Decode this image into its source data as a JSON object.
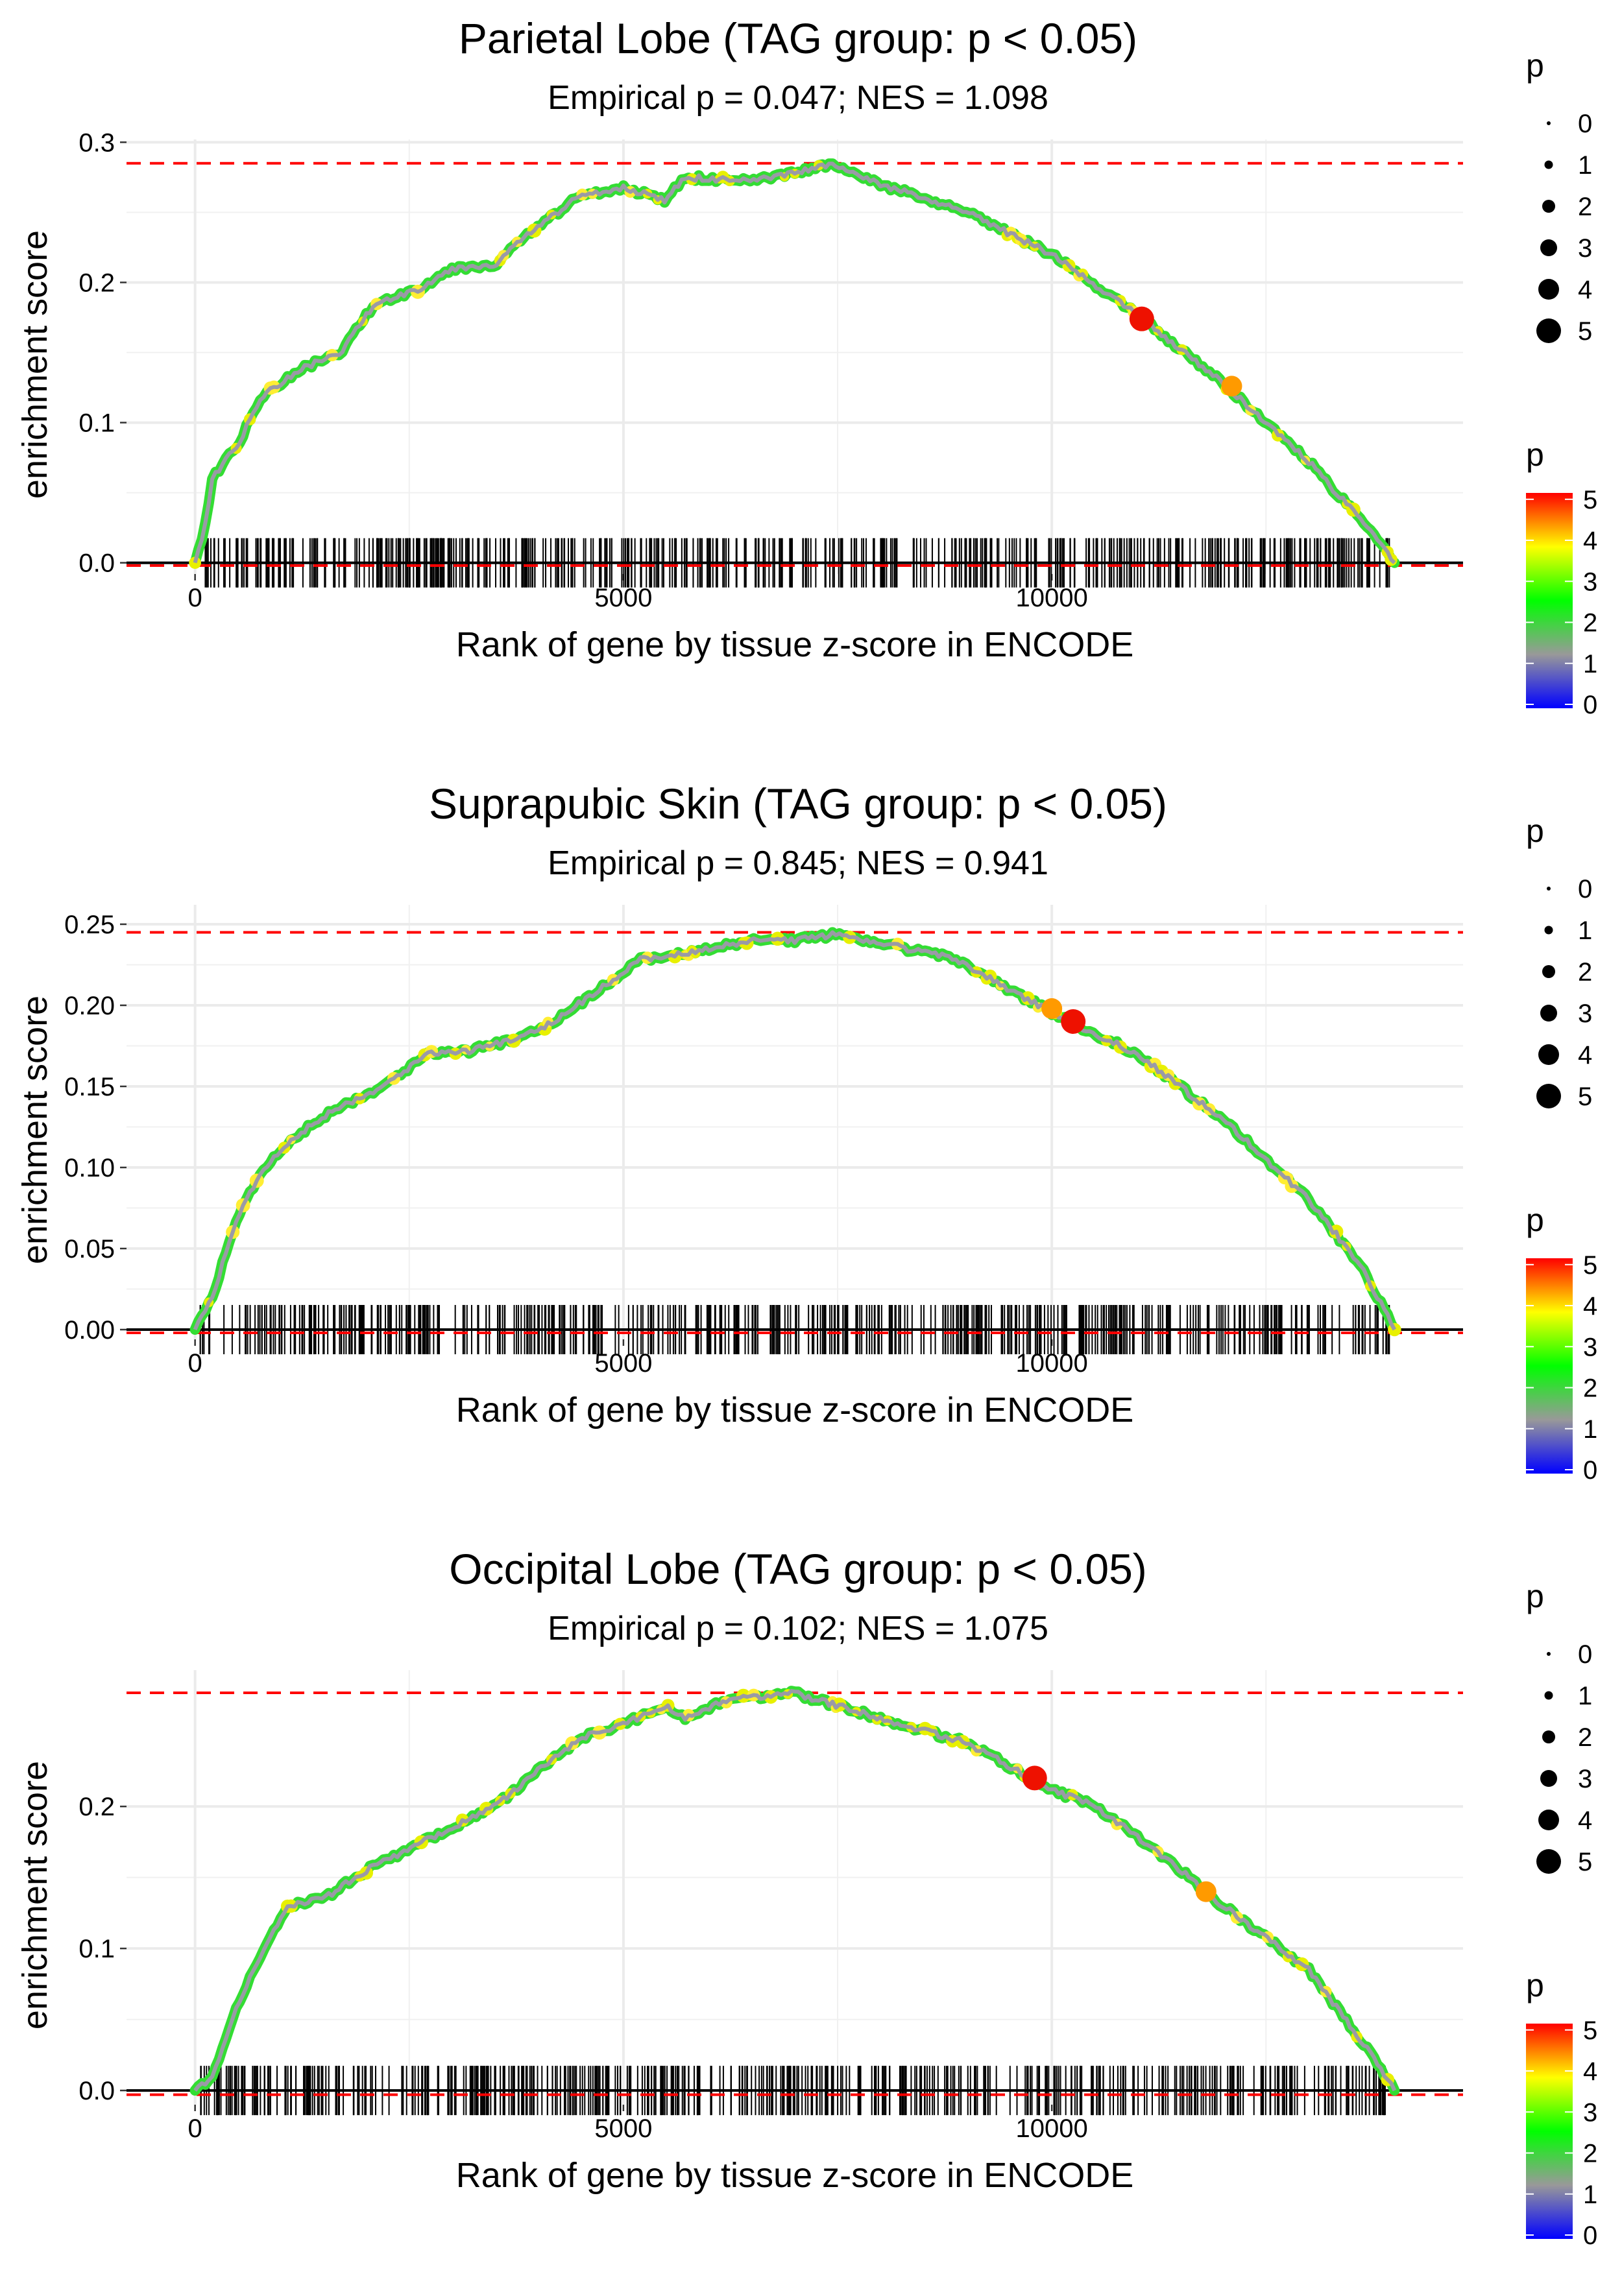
{
  "chart_data": [
    {
      "type": "line",
      "title": "Parietal Lobe (TAG group: p < 0.05)",
      "subtitle": "Empirical p = 0.047; NES = 1.098",
      "xlabel": "Rank of gene by tissue z-score in ENCODE",
      "ylabel": "enrichment score",
      "xlim": [
        -800,
        14800
      ],
      "ylim": [
        -0.008,
        0.302
      ],
      "x_ticks": [
        0,
        5000,
        10000
      ],
      "x_tick_labels": [
        "0",
        "5000",
        "10000"
      ],
      "y_ticks": [
        0.0,
        0.1,
        0.2,
        0.3
      ],
      "y_tick_labels": [
        "0.0",
        "0.1",
        "0.2",
        "0.3"
      ],
      "max_es": 0.285,
      "min_es": -0.002,
      "x_end": 14000,
      "rug_range": [
        0,
        14000
      ],
      "curve": [
        [
          0,
          0
        ],
        [
          100,
          0.02
        ],
        [
          200,
          0.06
        ],
        [
          500,
          0.085
        ],
        [
          800,
          0.12
        ],
        [
          1300,
          0.14
        ],
        [
          1700,
          0.15
        ],
        [
          2100,
          0.185
        ],
        [
          2600,
          0.195
        ],
        [
          3000,
          0.21
        ],
        [
          3500,
          0.213
        ],
        [
          3900,
          0.235
        ],
        [
          4500,
          0.262
        ],
        [
          5000,
          0.268
        ],
        [
          5500,
          0.258
        ],
        [
          5700,
          0.275
        ],
        [
          6500,
          0.272
        ],
        [
          7000,
          0.278
        ],
        [
          7400,
          0.284
        ],
        [
          8000,
          0.27
        ],
        [
          9000,
          0.25
        ],
        [
          10000,
          0.22
        ],
        [
          11000,
          0.177
        ],
        [
          12000,
          0.128
        ],
        [
          13000,
          0.072
        ],
        [
          13900,
          0.01
        ],
        [
          14000,
          0
        ]
      ],
      "highlight_points": [
        {
          "x": 11050,
          "y": 0.174,
          "p": 5.2
        },
        {
          "x": 12100,
          "y": 0.126,
          "p": 4.0
        }
      ],
      "size_legend": {
        "title": "p",
        "labels": [
          "0",
          "1",
          "2",
          "3",
          "4",
          "5"
        ]
      },
      "color_legend": {
        "title": "p",
        "labels": [
          "5",
          "4",
          "3",
          "2",
          "1",
          "0"
        ],
        "colors": [
          "#ff0000",
          "#ffff00",
          "#00ff00",
          "#999999",
          "#0000ff"
        ]
      }
    },
    {
      "type": "line",
      "title": "Suprapubic Skin (TAG group: p < 0.05)",
      "subtitle": "Empirical p = 0.845; NES = 0.941",
      "xlabel": "Rank of gene by tissue z-score in ENCODE",
      "ylabel": "enrichment score",
      "xlim": [
        -800,
        14800
      ],
      "ylim": [
        -0.006,
        0.262
      ],
      "x_ticks": [
        0,
        5000,
        10000
      ],
      "x_tick_labels": [
        "0",
        "5000",
        "10000"
      ],
      "y_ticks": [
        0.0,
        0.05,
        0.1,
        0.15,
        0.2,
        0.25
      ],
      "y_tick_labels": [
        "0.00",
        "0.05",
        "0.10",
        "0.15",
        "0.20",
        "0.25"
      ],
      "max_es": 0.245,
      "min_es": -0.002,
      "x_end": 14000,
      "rug_range": [
        0,
        14000
      ],
      "curve": [
        [
          0,
          0
        ],
        [
          200,
          0.02
        ],
        [
          500,
          0.07
        ],
        [
          800,
          0.1
        ],
        [
          1200,
          0.12
        ],
        [
          1600,
          0.135
        ],
        [
          2200,
          0.15
        ],
        [
          2700,
          0.17
        ],
        [
          3200,
          0.172
        ],
        [
          3800,
          0.18
        ],
        [
          4200,
          0.19
        ],
        [
          4800,
          0.213
        ],
        [
          5200,
          0.228
        ],
        [
          5800,
          0.233
        ],
        [
          6500,
          0.24
        ],
        [
          7000,
          0.24
        ],
        [
          7500,
          0.244
        ],
        [
          8000,
          0.238
        ],
        [
          8800,
          0.23
        ],
        [
          9500,
          0.21
        ],
        [
          10200,
          0.19
        ],
        [
          11000,
          0.17
        ],
        [
          11500,
          0.15
        ],
        [
          12200,
          0.12
        ],
        [
          13000,
          0.08
        ],
        [
          13600,
          0.04
        ],
        [
          14000,
          0
        ]
      ],
      "highlight_points": [
        {
          "x": 10000,
          "y": 0.198,
          "p": 4.1
        },
        {
          "x": 10250,
          "y": 0.19,
          "p": 5.2
        }
      ],
      "size_legend": {
        "title": "p",
        "labels": [
          "0",
          "1",
          "2",
          "3",
          "4",
          "5"
        ]
      },
      "color_legend": {
        "title": "p",
        "labels": [
          "5",
          "4",
          "3",
          "2",
          "1",
          "0"
        ],
        "colors": [
          "#ff0000",
          "#ffff00",
          "#00ff00",
          "#999999",
          "#0000ff"
        ]
      }
    },
    {
      "type": "line",
      "title": "Occipital Lobe (TAG group: p < 0.05)",
      "subtitle": "Empirical p = 0.102; NES = 1.075",
      "xlabel": "Rank of gene by tissue z-score in ENCODE",
      "ylabel": "enrichment score",
      "xlim": [
        -800,
        14800
      ],
      "ylim": [
        -0.01,
        0.296
      ],
      "x_ticks": [
        0,
        5000,
        10000
      ],
      "x_tick_labels": [
        "0",
        "5000",
        "10000"
      ],
      "y_ticks": [
        0.0,
        0.1,
        0.2
      ],
      "y_tick_labels": [
        "0.0",
        "0.1",
        "0.2"
      ],
      "max_es": 0.28,
      "min_es": -0.003,
      "x_end": 14000,
      "rug_range": [
        0,
        14000
      ],
      "curve": [
        [
          0,
          0
        ],
        [
          200,
          0.01
        ],
        [
          500,
          0.06
        ],
        [
          800,
          0.1
        ],
        [
          1100,
          0.13
        ],
        [
          1500,
          0.135
        ],
        [
          2000,
          0.155
        ],
        [
          2500,
          0.17
        ],
        [
          3000,
          0.185
        ],
        [
          3500,
          0.2
        ],
        [
          4000,
          0.225
        ],
        [
          4500,
          0.248
        ],
        [
          5000,
          0.258
        ],
        [
          5500,
          0.27
        ],
        [
          5700,
          0.262
        ],
        [
          6200,
          0.275
        ],
        [
          7000,
          0.28
        ],
        [
          8000,
          0.262
        ],
        [
          9000,
          0.245
        ],
        [
          10000,
          0.212
        ],
        [
          10500,
          0.2
        ],
        [
          11200,
          0.17
        ],
        [
          12000,
          0.13
        ],
        [
          13000,
          0.085
        ],
        [
          13800,
          0.02
        ],
        [
          14000,
          0
        ]
      ],
      "highlight_points": [
        {
          "x": 9800,
          "y": 0.22,
          "p": 5.2
        },
        {
          "x": 11800,
          "y": 0.14,
          "p": 4.0
        }
      ],
      "size_legend": {
        "title": "p",
        "labels": [
          "0",
          "1",
          "2",
          "3",
          "4",
          "5"
        ]
      },
      "color_legend": {
        "title": "p",
        "labels": [
          "5",
          "4",
          "3",
          "2",
          "1",
          "0"
        ],
        "colors": [
          "#ff0000",
          "#ffff00",
          "#00ff00",
          "#999999",
          "#0000ff"
        ]
      }
    }
  ]
}
